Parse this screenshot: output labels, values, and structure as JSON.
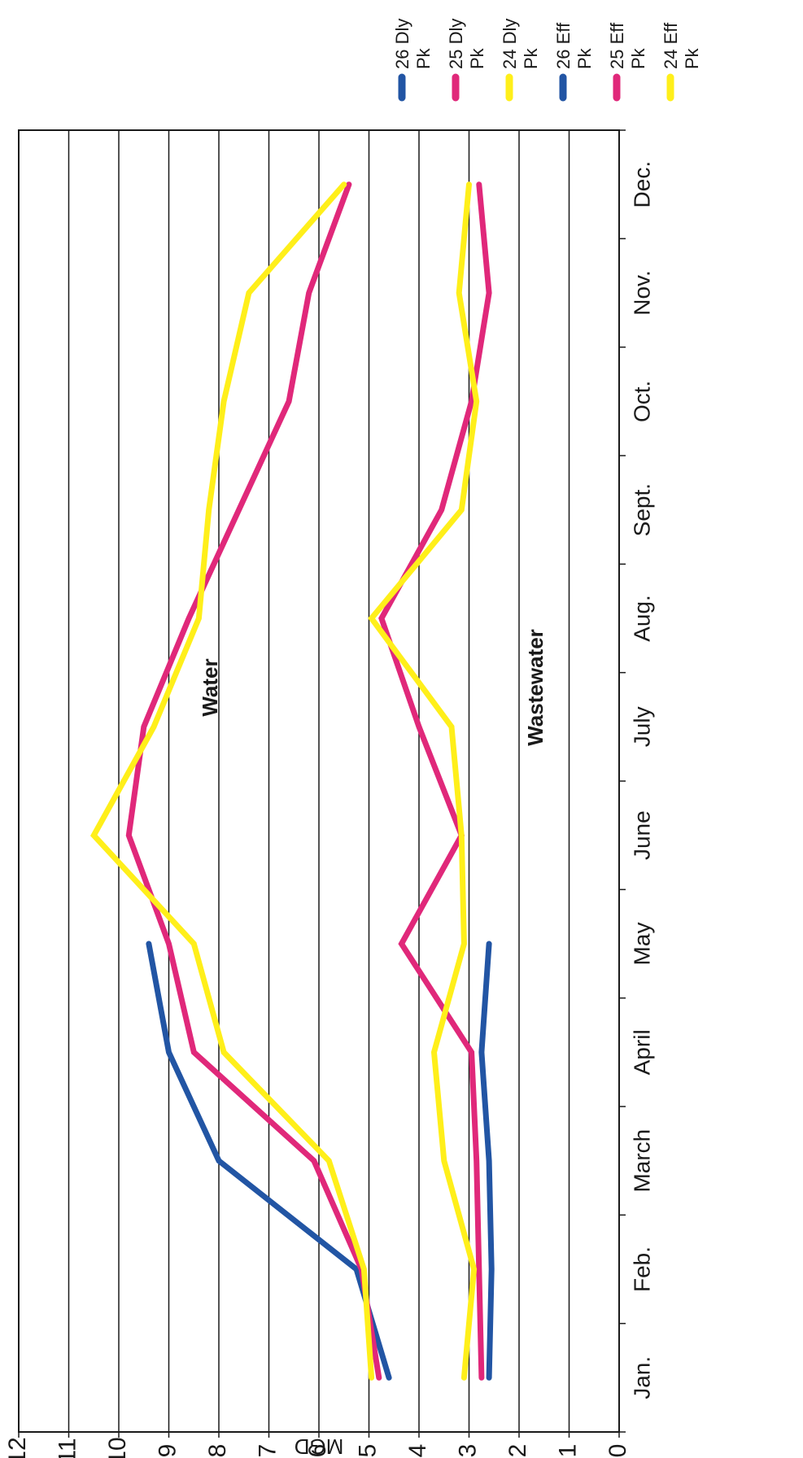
{
  "chart_data": {
    "type": "line",
    "orientation": "rotated-90-counterclockwise",
    "ylabel": "MGD",
    "ylim": [
      0,
      12
    ],
    "yticks": [
      0,
      1,
      2,
      3,
      4,
      5,
      6,
      7,
      8,
      9,
      10,
      11,
      12
    ],
    "grid": true,
    "legend_position": "top-right",
    "categories": [
      "Jan.",
      "Feb.",
      "March",
      "April",
      "May",
      "June",
      "July",
      "Aug.",
      "Sept.",
      "Oct.",
      "Nov.",
      "Dec."
    ],
    "annotations": [
      "Water",
      "Wastewater"
    ],
    "series": [
      {
        "name": "26 Dly Pk",
        "color": "#2255a4",
        "values": [
          4.6,
          5.25,
          8.0,
          9.0,
          9.4,
          null,
          null,
          null,
          null,
          null,
          null,
          null
        ]
      },
      {
        "name": "25 Dly Pk",
        "color": "#e0287a",
        "values": [
          4.8,
          5.15,
          6.1,
          8.5,
          9.0,
          9.8,
          9.5,
          8.6,
          7.6,
          6.6,
          6.2,
          5.4
        ]
      },
      {
        "name": "24 Dly Pk",
        "color": "#ffef1a",
        "values": [
          4.95,
          5.1,
          5.8,
          7.9,
          8.5,
          10.5,
          9.3,
          8.4,
          8.2,
          7.9,
          7.4,
          5.5
        ]
      },
      {
        "name": "26 Eff Pk",
        "color": "#2255a4",
        "values": [
          2.6,
          2.55,
          2.6,
          2.75,
          2.6,
          null,
          null,
          null,
          null,
          null,
          null,
          null
        ]
      },
      {
        "name": "25 Eff Pk",
        "color": "#e0287a",
        "values": [
          2.75,
          2.8,
          2.85,
          2.95,
          4.35,
          3.15,
          4.0,
          4.75,
          3.55,
          2.95,
          2.6,
          2.8
        ]
      },
      {
        "name": "24 Eff Pk",
        "color": "#ffef1a",
        "values": [
          3.1,
          2.9,
          3.5,
          3.7,
          3.1,
          3.15,
          3.35,
          4.95,
          3.15,
          2.85,
          3.2,
          3.0
        ]
      }
    ]
  }
}
